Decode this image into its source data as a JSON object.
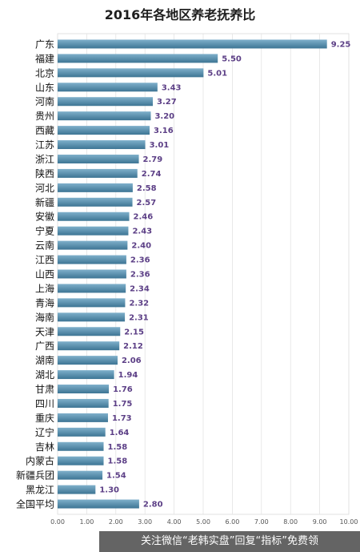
{
  "chart_data": {
    "type": "bar",
    "orientation": "horizontal",
    "title": "2016年各地区养老抚养比",
    "categories": [
      "广东",
      "福建",
      "北京",
      "山东",
      "河南",
      "贵州",
      "西藏",
      "江苏",
      "浙江",
      "陕西",
      "河北",
      "新疆",
      "安徽",
      "宁夏",
      "云南",
      "江西",
      "山西",
      "上海",
      "青海",
      "海南",
      "天津",
      "广西",
      "湖南",
      "湖北",
      "甘肃",
      "四川",
      "重庆",
      "辽宁",
      "吉林",
      "内蒙古",
      "新疆兵团",
      "黑龙江",
      "全国平均"
    ],
    "values": [
      9.25,
      5.5,
      5.01,
      3.43,
      3.27,
      3.2,
      3.16,
      3.01,
      2.79,
      2.74,
      2.58,
      2.57,
      2.46,
      2.43,
      2.4,
      2.36,
      2.36,
      2.34,
      2.32,
      2.31,
      2.15,
      2.12,
      2.06,
      1.94,
      1.76,
      1.75,
      1.73,
      1.64,
      1.58,
      1.58,
      1.54,
      1.3,
      2.8
    ],
    "value_labels": [
      "9.25",
      "5.50",
      "5.01",
      "3.43",
      "3.27",
      "3.20",
      "3.16",
      "3.01",
      "2.79",
      "2.74",
      "2.58",
      "2.57",
      "2.46",
      "2.43",
      "2.40",
      "2.36",
      "2.36",
      "2.34",
      "2.32",
      "2.31",
      "2.15",
      "2.12",
      "2.06",
      "1.94",
      "1.76",
      "1.75",
      "1.73",
      "1.64",
      "1.58",
      "1.58",
      "1.54",
      "1.30",
      "2.80"
    ],
    "x_ticks": [
      "0.00",
      "1.00",
      "2.00",
      "3.00",
      "4.00",
      "5.00",
      "6.00",
      "7.00",
      "8.00",
      "9.00",
      "10.00"
    ],
    "xlim": [
      0,
      10
    ],
    "grid": true,
    "bar_color": "#3d7594",
    "bar_highlight_color": "#7fb0cb",
    "value_label_color": "#5c3f86",
    "xlabel": "",
    "ylabel": ""
  },
  "watermark": "关注微信“老韩实盘”回复“指标”免费领"
}
